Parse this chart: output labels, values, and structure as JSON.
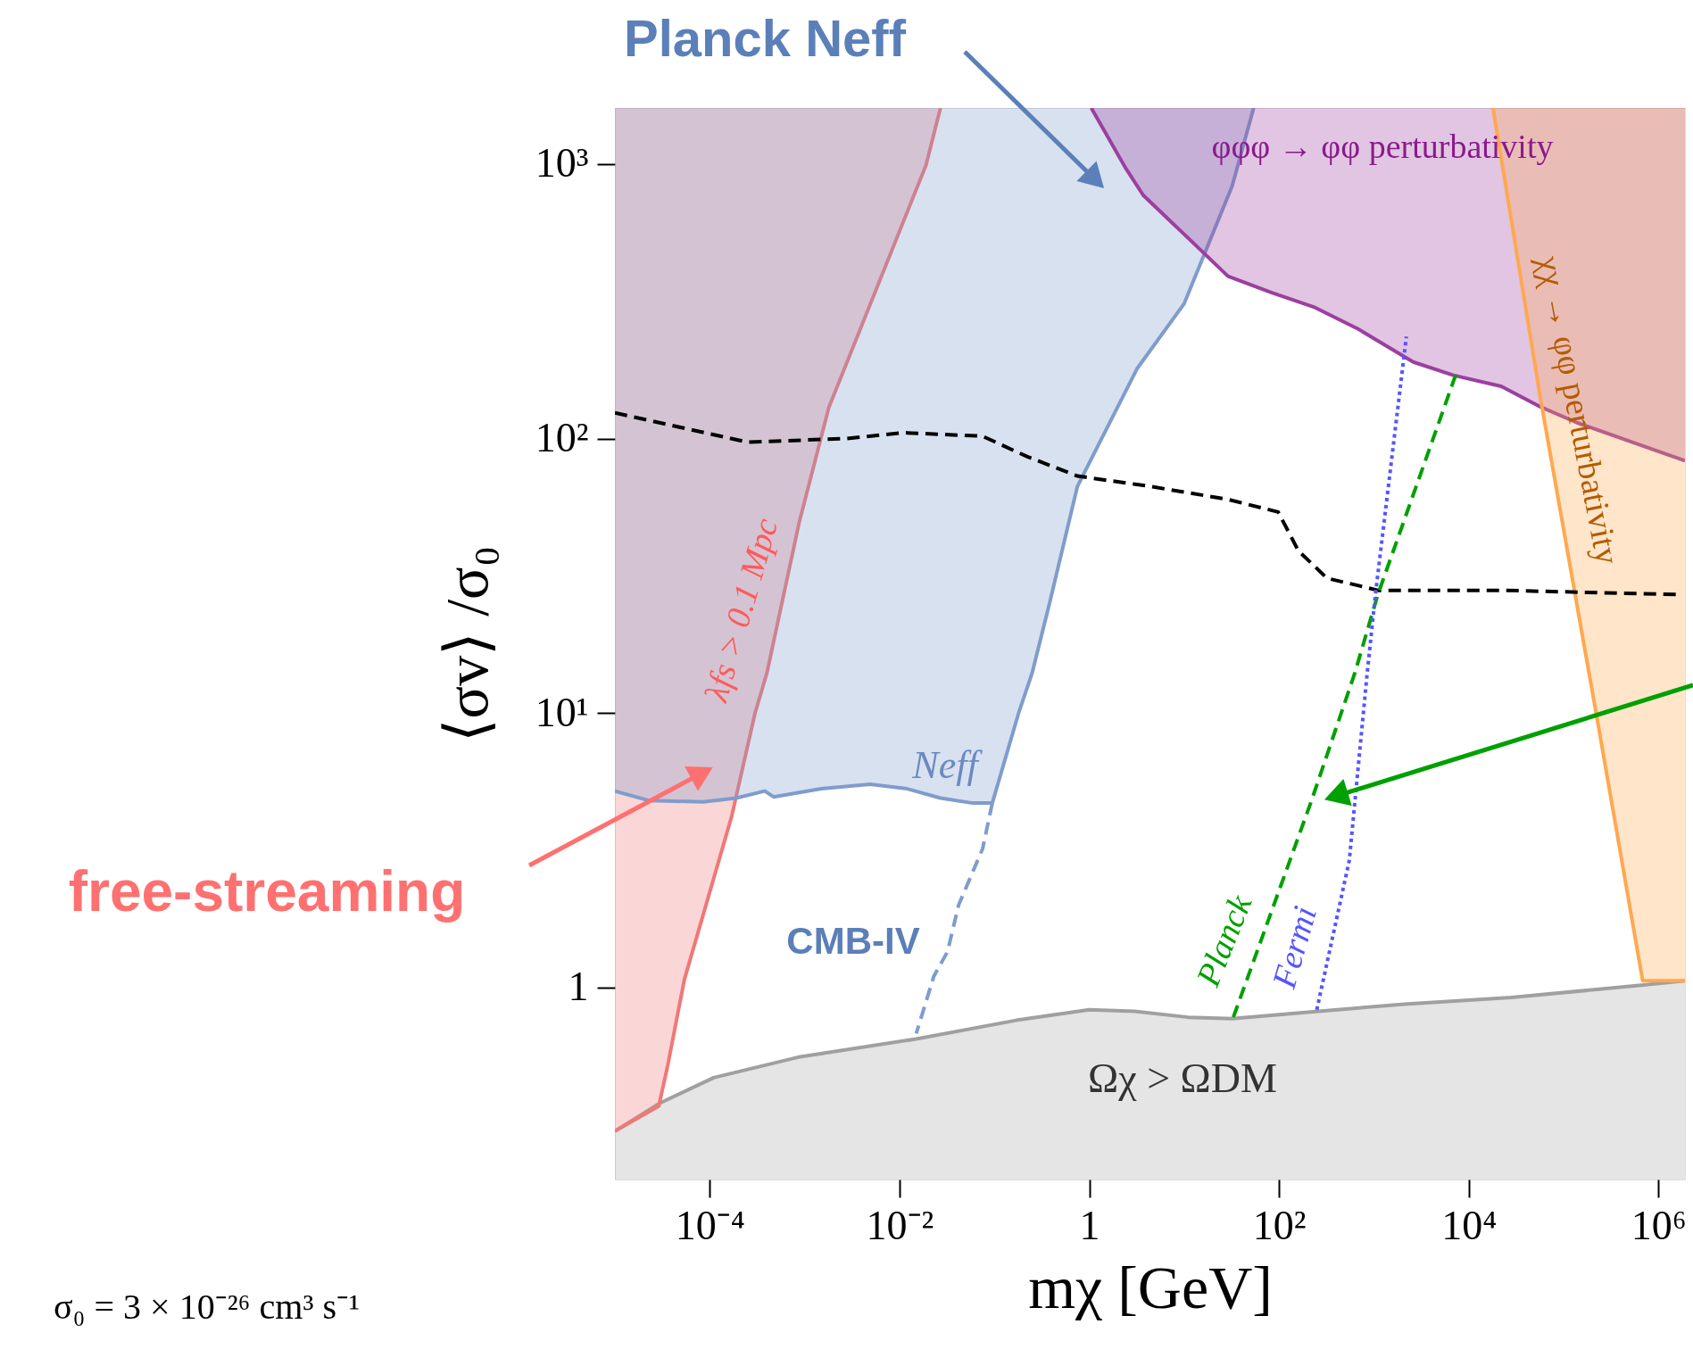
{
  "chart_data": {
    "type": "area",
    "xlabel": "mχ [GeV]",
    "ylabel": "⟨σv⟩ /σ₀",
    "xlim": [
      1e-05,
      1900000
    ],
    "ylim": [
      0.2,
      1600
    ],
    "log": "xy",
    "grid": false,
    "xticks": [
      {
        "value": 0.0001,
        "label": "10⁻⁴"
      },
      {
        "value": 0.01,
        "label": "10⁻²"
      },
      1,
      {
        "value": 100,
        "label": "10²"
      },
      {
        "value": 10000,
        "label": "10⁴"
      },
      {
        "value": 1000000,
        "label": "10⁶"
      }
    ],
    "yticks": [
      1,
      {
        "value": 10,
        "label": "10¹"
      },
      {
        "value": 100,
        "label": "10²"
      },
      {
        "value": 1000,
        "label": "10³"
      }
    ],
    "series": [
      {
        "color": "#a0a0a0",
        "x": [
          1e-05,
          3e-05,
          0.00011,
          0.0009,
          0.015,
          0.17,
          1,
          3,
          11,
          32,
          260,
          2100,
          28000,
          660000,
          1900000
        ],
        "values": [
          0.3,
          0.38,
          0.47,
          0.56,
          0.65,
          0.76,
          0.83,
          0.82,
          0.78,
          0.77,
          0.82,
          0.87,
          0.92,
          1.02,
          1.06
        ]
      },
      {
        "type": "line",
        "color": "#f07878",
        "line_style": "solid",
        "x": [
          1e-05,
          2.9e-05,
          3.6e-05,
          5.4e-05,
          0.00017,
          0.0003,
          0.0004,
          0.00087,
          0.0018,
          0.0028,
          0.019,
          0.027
        ],
        "values": [
          0.3,
          0.37,
          0.52,
          1.07,
          4.2,
          10,
          14,
          49,
          130,
          190,
          990,
          1600
        ],
        "lower": [
          0.3,
          0.37,
          0.52,
          1.07,
          4.2,
          10,
          14,
          49,
          130,
          190,
          990,
          1600
        ],
        "upper": [
          1600,
          1600,
          1600,
          1600,
          1600,
          1600,
          1600,
          1600,
          1600,
          1600,
          1600,
          1600
        ]
      },
      {
        "type": "line",
        "color": "#7f9ccc",
        "line_style": "solid",
        "x": [
          1e-05,
          2.3e-05,
          8.5e-05,
          0.00019,
          0.00038,
          0.00047,
          0.0015,
          0.0049,
          0.012,
          0.027,
          0.059,
          0.095,
          0.18,
          0.25,
          0.38,
          0.75,
          3.2,
          10,
          32,
          54
        ],
        "values": [
          5.2,
          4.8,
          4.75,
          4.9,
          5.2,
          4.95,
          5.3,
          5.5,
          5.3,
          4.9,
          4.7,
          4.7,
          10,
          14,
          25,
          67,
          180,
          310,
          830,
          1600
        ],
        "lower": [
          5.2,
          4.8,
          4.75,
          4.9,
          5.2,
          4.95,
          5.3,
          5.5,
          5.3,
          4.9,
          4.7,
          4.7,
          10,
          14,
          25,
          67,
          180,
          310,
          830,
          1600
        ],
        "upper": [
          1600,
          1600,
          1600,
          1600,
          1600,
          1600,
          1600,
          1600,
          1600,
          1600,
          1600,
          1600,
          1600,
          1600,
          1600,
          1600,
          1600,
          1600,
          1600,
          1600
        ]
      },
      {
        "type": "line",
        "color": "#9b3fa0",
        "line_style": "solid",
        "x": [
          1.05,
          2.4,
          3.7,
          9.2,
          29,
          83,
          240,
          690,
          2600,
          6900,
          22000,
          58000,
          140000,
          1900000
        ],
        "values": [
          1600,
          970,
          770,
          570,
          390,
          340,
          300,
          250,
          190,
          170,
          155,
          130,
          114,
          83
        ],
        "lower": [
          1600,
          970,
          770,
          570,
          390,
          340,
          300,
          250,
          190,
          170,
          155,
          130,
          114,
          83
        ],
        "upper": [
          1600,
          1600,
          1600,
          1600,
          1600,
          1600,
          1600,
          1600,
          1600,
          1600,
          1600,
          1600,
          1600,
          1600
        ]
      },
      {
        "type": "line",
        "color": "#ffa850",
        "line_style": "solid",
        "x": [
          18000,
          58000,
          220000,
          680000,
          1900000
        ],
        "values": [
          1600,
          135,
          10,
          1.06,
          1.06
        ],
        "lower": [
          1600,
          135,
          10,
          1.06,
          1.06
        ],
        "upper": [
          1600,
          1600,
          1600,
          1600,
          1600
        ]
      },
      {
        "type": "line",
        "color": "#7f9ccc",
        "line_style": "dashed",
        "x": [
          0.095,
          0.075,
          0.042,
          0.032,
          0.023,
          0.015
        ],
        "values": [
          4.7,
          3.2,
          2.0,
          1.35,
          1.1,
          0.68
        ]
      },
      {
        "type": "line",
        "color": "#000000",
        "line_style": "dashed",
        "x": [
          1e-05,
          0.00025,
          0.0028,
          0.011,
          0.075,
          0.22,
          0.75,
          4.3,
          29,
          98,
          160,
          320,
          1100,
          22000,
          1700000
        ],
        "values": [
          124,
          97,
          100,
          105,
          102,
          86,
          73,
          67,
          60,
          54,
          39,
          31,
          28,
          28,
          27
        ]
      },
      {
        "type": "line",
        "color": "#00a000",
        "line_style": "dashed",
        "x": [
          33,
          220,
          630,
          1100,
          7700
        ],
        "values": [
          0.78,
          4.8,
          14,
          27,
          180
        ]
      },
      {
        "type": "line",
        "color": "#5555ff",
        "line_style": "dotted",
        "x": [
          250,
          550,
          850,
          1050,
          2200
        ],
        "values": [
          0.83,
          2.9,
          14,
          28,
          235
        ]
      }
    ],
    "annotations": [
      "Planck Neff",
      "free-streaming",
      "λfs > 0.1 Mpc",
      "Neff",
      "CMB-IV",
      "φφφ → φφ perturbativity",
      "χχ → φφ perturbativity",
      "Planck",
      "Fermi",
      "Ωχ > ΩDM",
      "σ₀ = 3 × 10⁻²⁶ cm³ s⁻¹"
    ]
  }
}
